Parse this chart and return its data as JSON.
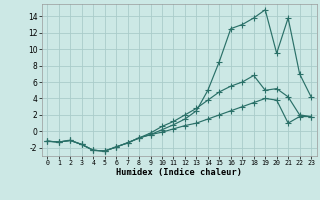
{
  "xlabel": "Humidex (Indice chaleur)",
  "background_color": "#cce8e5",
  "grid_color": "#aaccca",
  "line_color": "#2a7068",
  "xlim": [
    -0.5,
    23.5
  ],
  "ylim": [
    -3.0,
    15.5
  ],
  "x_ticks": [
    0,
    1,
    2,
    3,
    4,
    5,
    6,
    7,
    8,
    9,
    10,
    11,
    12,
    13,
    14,
    15,
    16,
    17,
    18,
    19,
    20,
    21,
    22,
    23
  ],
  "y_ticks": [
    -2,
    0,
    2,
    4,
    6,
    8,
    10,
    12,
    14
  ],
  "line_peak_x": [
    0,
    1,
    2,
    3,
    4,
    5,
    6,
    7,
    8,
    9,
    10,
    11,
    12,
    13,
    14,
    15,
    16,
    17,
    18,
    19,
    20,
    21,
    22,
    23
  ],
  "line_peak_y": [
    -1.2,
    -1.3,
    -1.1,
    -1.6,
    -2.3,
    -2.4,
    -1.9,
    -1.4,
    -0.8,
    -0.4,
    0.2,
    0.8,
    1.5,
    2.5,
    5.0,
    8.5,
    12.5,
    13.0,
    13.8,
    14.8,
    9.5,
    13.8,
    7.0,
    4.2
  ],
  "line_mid_x": [
    0,
    1,
    2,
    3,
    4,
    5,
    6,
    7,
    8,
    9,
    10,
    11,
    12,
    13,
    14,
    15,
    16,
    17,
    18,
    19,
    20,
    21,
    22,
    23
  ],
  "line_mid_y": [
    -1.2,
    -1.3,
    -1.1,
    -1.6,
    -2.3,
    -2.4,
    -1.9,
    -1.4,
    -0.8,
    -0.2,
    0.6,
    1.2,
    2.0,
    2.8,
    3.8,
    4.8,
    5.5,
    6.0,
    6.8,
    5.0,
    5.2,
    4.2,
    2.0,
    1.8
  ],
  "line_bot_x": [
    0,
    1,
    2,
    3,
    4,
    5,
    6,
    7,
    8,
    9,
    10,
    11,
    12,
    13,
    14,
    15,
    16,
    17,
    18,
    19,
    20,
    21,
    22,
    23
  ],
  "line_bot_y": [
    -1.2,
    -1.3,
    -1.1,
    -1.6,
    -2.3,
    -2.4,
    -1.9,
    -1.4,
    -0.8,
    -0.4,
    -0.1,
    0.3,
    0.7,
    1.0,
    1.5,
    2.0,
    2.5,
    3.0,
    3.5,
    4.0,
    3.8,
    1.0,
    1.8,
    1.8
  ]
}
